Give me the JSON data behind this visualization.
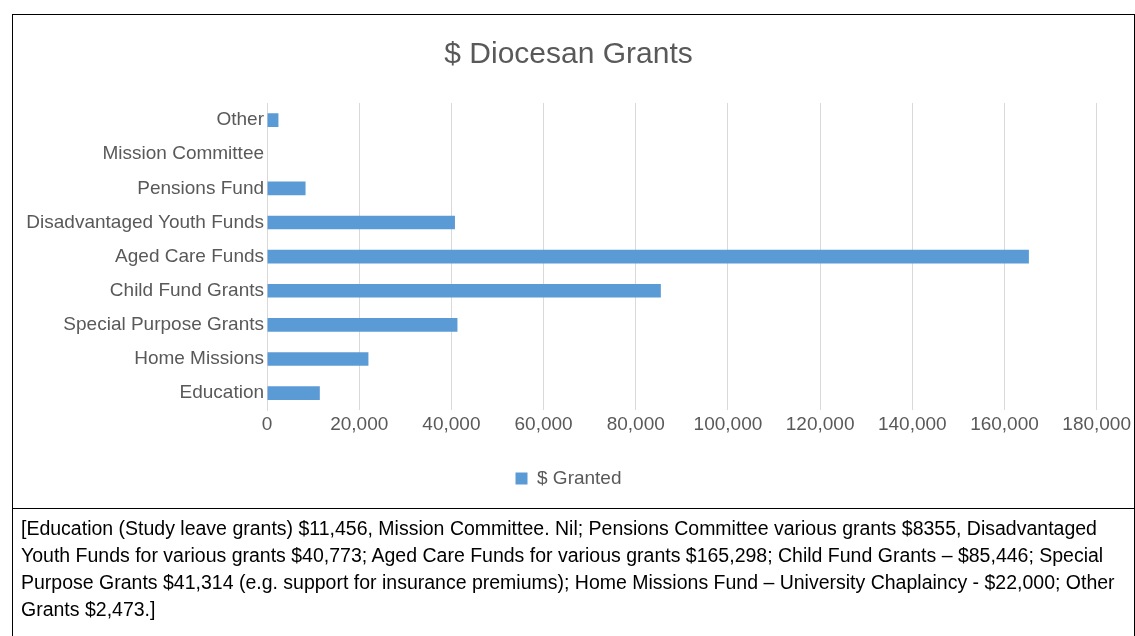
{
  "chart_data": {
    "type": "bar",
    "orientation": "horizontal",
    "title": "$ Diocesan Grants",
    "categories": [
      "Other",
      "Mission Committee",
      "Pensions Fund",
      "Disadvantaged Youth Funds",
      "Aged Care Funds",
      "Child Fund Grants",
      "Special Purpose Grants",
      "Home Missions",
      "Education"
    ],
    "series": [
      {
        "name": "$ Granted",
        "color": "#5b9bd5",
        "values": [
          2473,
          0,
          8355,
          40773,
          165298,
          85446,
          41314,
          22000,
          11456
        ]
      }
    ],
    "xlim": [
      0,
      180000
    ],
    "xticks": [
      0,
      {
        "value": 20000,
        "label": "20,000"
      },
      {
        "value": 40000,
        "label": "40,000"
      },
      {
        "value": 60000,
        "label": "60,000"
      },
      {
        "value": 80000,
        "label": "80,000"
      },
      {
        "value": 100000,
        "label": "100,000"
      },
      {
        "value": 120000,
        "label": "120,000"
      },
      {
        "value": 140000,
        "label": "140,000"
      },
      {
        "value": 160000,
        "label": "160,000"
      },
      {
        "value": 180000,
        "label": "180,000"
      }
    ],
    "grid": "x",
    "legend": "bottom",
    "annotations": [
      "[Education (Study leave grants) $11,456, Mission Committee. Nil; Pensions Committee various grants $8355, Disadvantaged Youth Funds for various grants $40,773; Aged Care Funds for various grants $165,298; Child Fund Grants – $85,446; Special Purpose Grants $41,314 (e.g. support for insurance premiums); Home Missions Fund – University Chaplaincy - $22,000; Other Grants $2,473.]"
    ]
  }
}
